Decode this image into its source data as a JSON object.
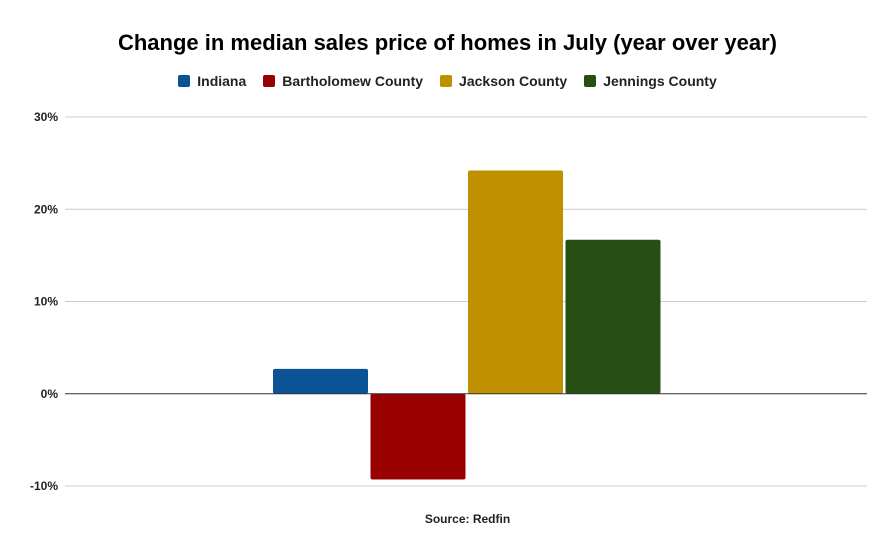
{
  "chart_data": {
    "type": "bar",
    "title": "Change in median sales price of homes in July (year over year)",
    "categories": [
      ""
    ],
    "series": [
      {
        "name": "Indiana",
        "values": [
          2.7
        ],
        "color": "#0b5394"
      },
      {
        "name": "Bartholomew County",
        "values": [
          -9.3
        ],
        "color": "#990000"
      },
      {
        "name": "Jackson County",
        "values": [
          24.2
        ],
        "color": "#bf9000"
      },
      {
        "name": "Jennings County",
        "values": [
          16.7
        ],
        "color": "#274e13"
      }
    ],
    "ylim": [
      -10,
      30
    ],
    "yticks": [
      30,
      20,
      10,
      0,
      -10
    ],
    "ytick_labels": [
      "30%",
      "20%",
      "10%",
      "0%",
      "-10%"
    ],
    "xlabel": "Source: Redfin",
    "ylabel": "",
    "grid": true,
    "legend": "top"
  }
}
